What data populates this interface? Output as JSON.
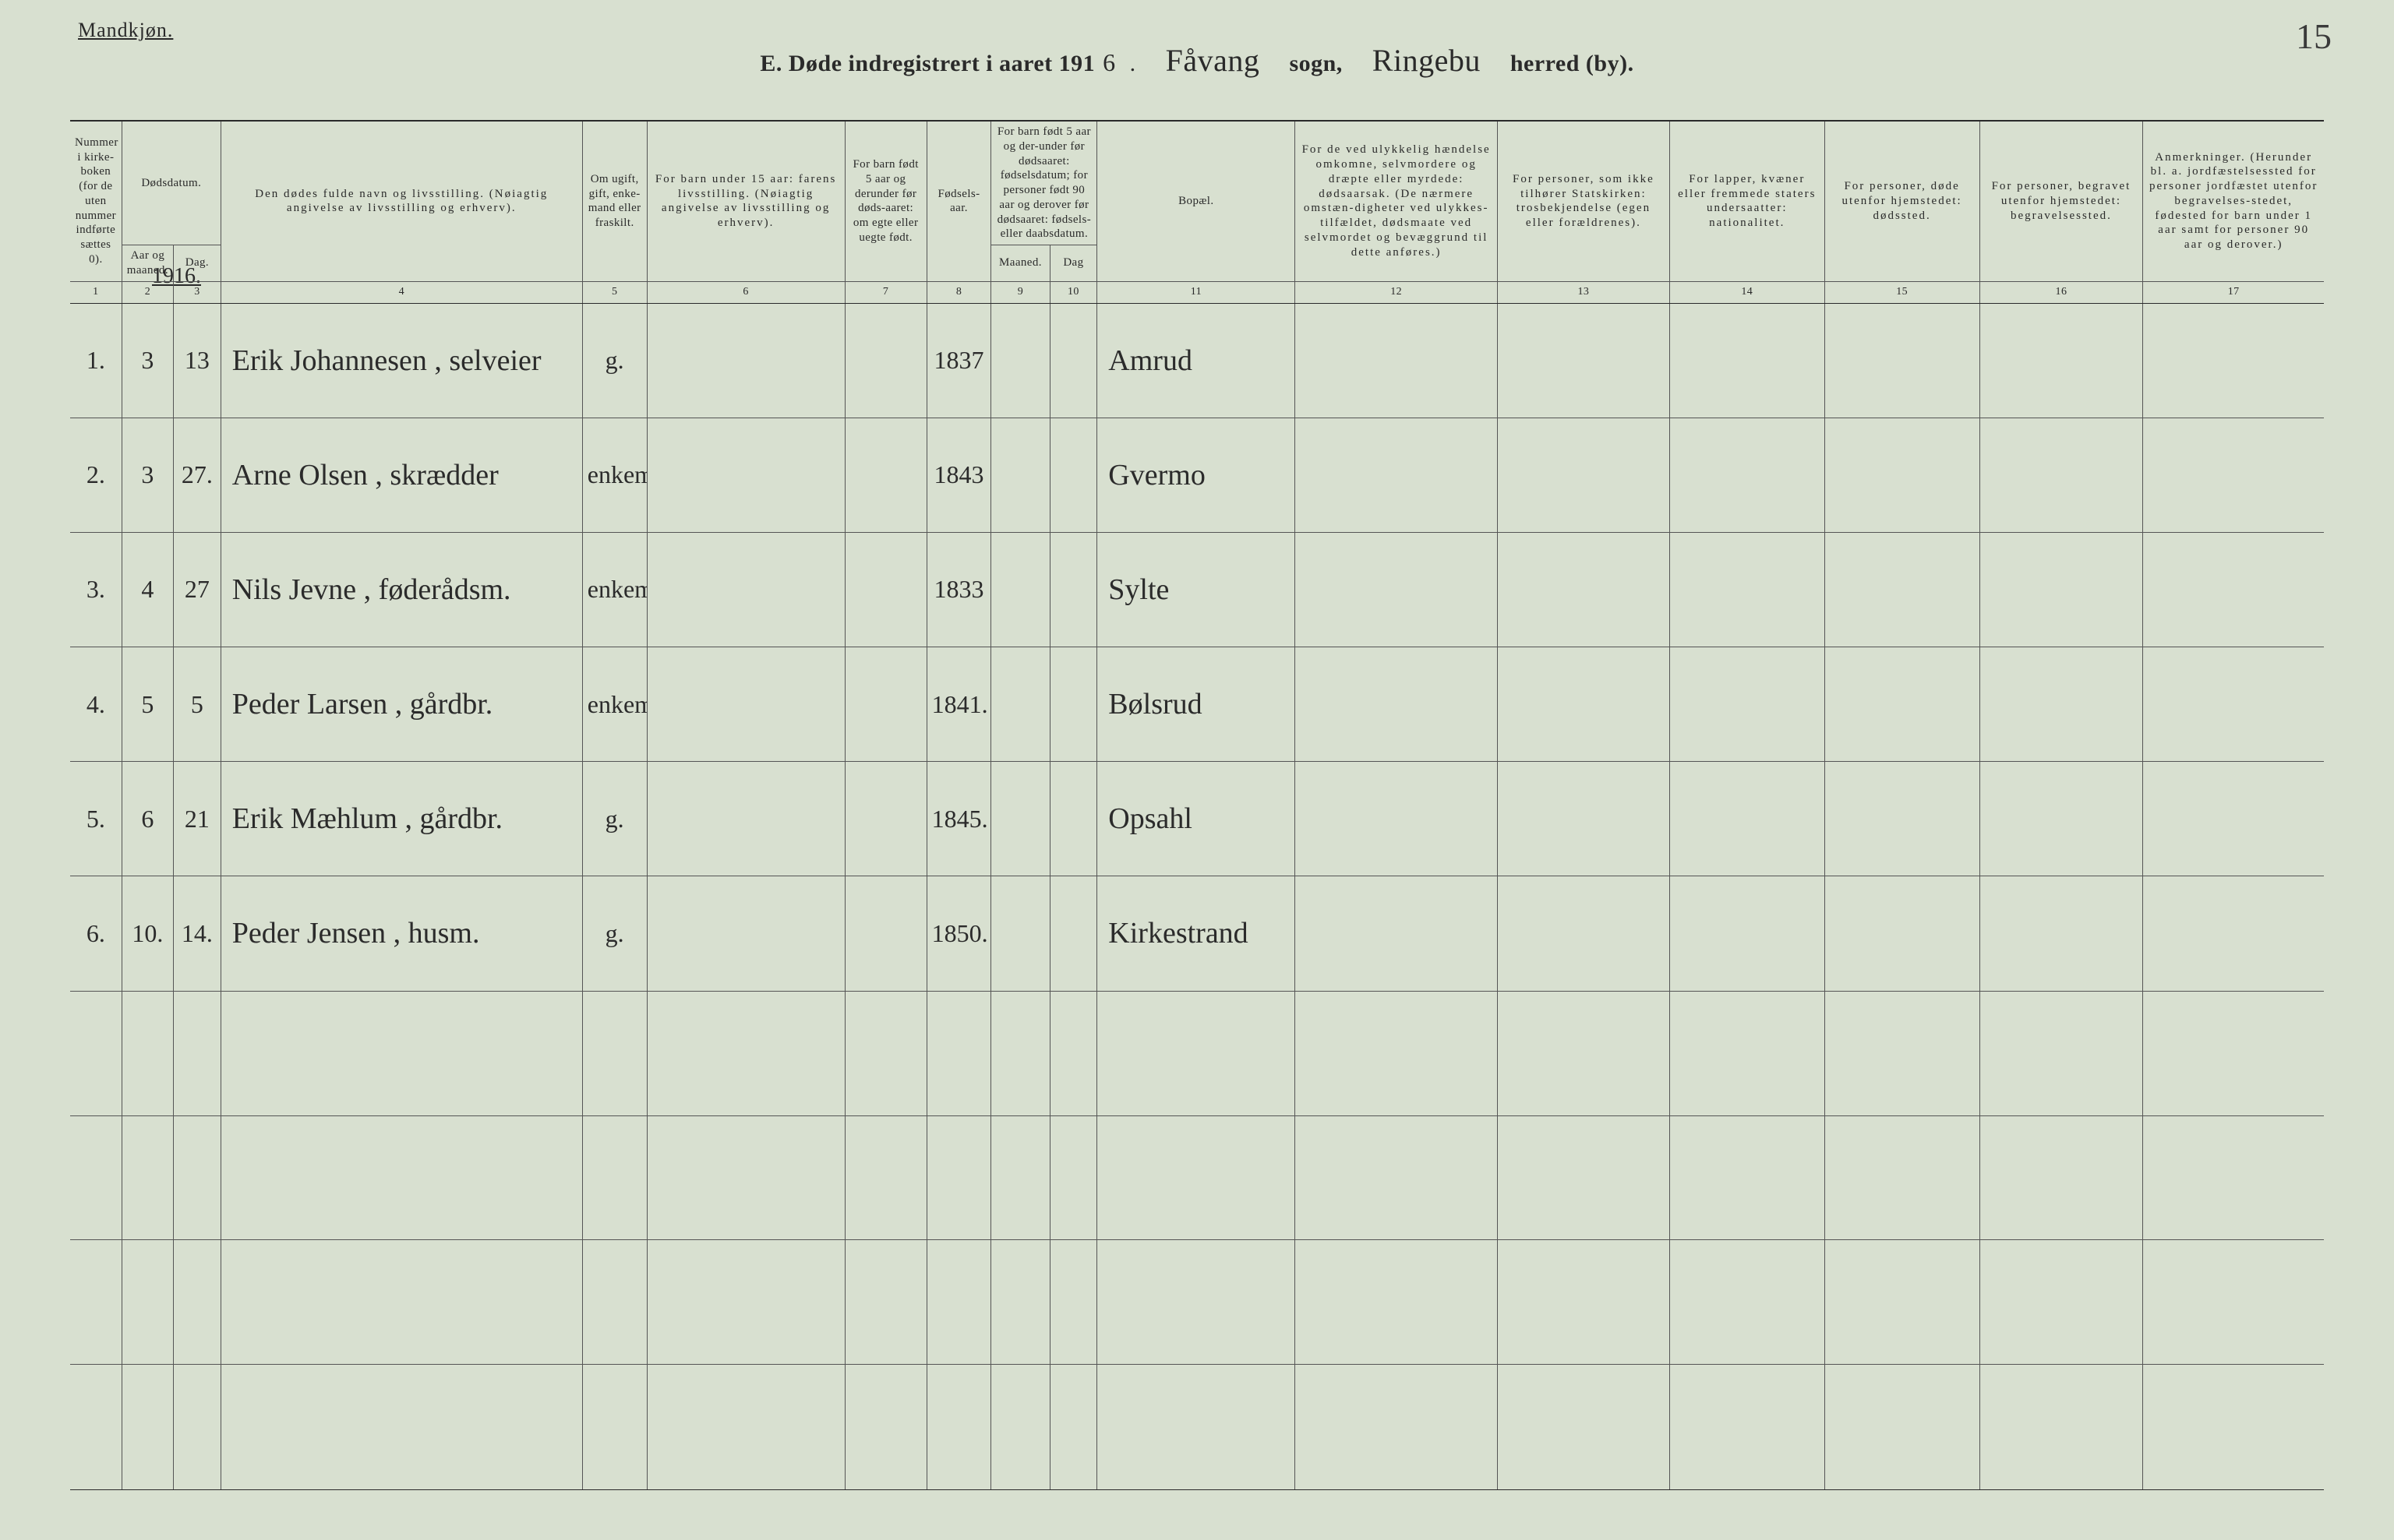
{
  "page_number_handwritten": "15",
  "header": {
    "gender": "Mandkjøn.",
    "section_letter": "E.",
    "title_main": "Døde indregistrert i aaret 191",
    "year_digit_hand": "6",
    "sogn_hand": "Fåvang",
    "sogn_label": "sogn,",
    "herred_hand": "Ringebu",
    "herred_label": "herred (by)."
  },
  "year_label": "1916.",
  "columns": {
    "c1": "Nummer i kirke-boken (for de uten nummer indførte sættes 0).",
    "c2_group": "Dødsdatum.",
    "c2": "Aar og maaned.",
    "c3": "Dag.",
    "c4": "Den dødes fulde navn og livsstilling. (Nøiagtig angivelse av livsstilling og erhverv).",
    "c5": "Om ugift, gift, enke-mand eller fraskilt.",
    "c6": "For barn under 15 aar: farens livsstilling. (Nøiagtig angivelse av livsstilling og erhverv).",
    "c7": "For barn født 5 aar og derunder før døds-aaret: om egte eller uegte født.",
    "c8": "Fødsels-aar.",
    "c9_group": "For barn født 5 aar og der-under før dødsaaret: fødselsdatum; for personer født 90 aar og derover før dødsaaret: fødsels- eller daabsdatum.",
    "c9": "Maaned.",
    "c10": "Dag",
    "c11": "Bopæl.",
    "c12": "For de ved ulykkelig hændelse omkomne, selvmordere og dræpte eller myrdede: dødsaarsak. (De nærmere omstæn-digheter ved ulykkes-tilfældet, dødsmaate ved selvmordet og bevæggrund til dette anføres.)",
    "c13": "For personer, som ikke tilhører Statskirken: trosbekjendelse (egen eller forældrenes).",
    "c14": "For lapper, kvæner eller fremmede staters undersaatter: nationalitet.",
    "c15": "For personer, døde utenfor hjemstedet: dødssted.",
    "c16": "For personer, begravet utenfor hjemstedet: begravelsessted.",
    "c17": "Anmerkninger. (Herunder bl. a. jordfæstelsessted for personer jordfæstet utenfor begravelses-stedet, fødested for barn under 1 aar samt for personer 90 aar og derover.)"
  },
  "col_numbers": [
    "1",
    "2",
    "3",
    "4",
    "5",
    "6",
    "7",
    "8",
    "9",
    "10",
    "11",
    "12",
    "13",
    "14",
    "15",
    "16",
    "17"
  ],
  "rows": [
    {
      "num": "1.",
      "maaned": "3",
      "dag": "13",
      "navn": "Erik Johannesen , selveier",
      "stand": "g.",
      "faar": "1837",
      "bopel": "Amrud"
    },
    {
      "num": "2.",
      "maaned": "3",
      "dag": "27.",
      "navn": "Arne Olsen ,  skrædder",
      "stand": "enkem.",
      "faar": "1843",
      "bopel": "Gvermo"
    },
    {
      "num": "3.",
      "maaned": "4",
      "dag": "27",
      "navn": "Nils Jevne , føderådsm.",
      "stand": "enkem.",
      "faar": "1833",
      "bopel": "Sylte"
    },
    {
      "num": "4.",
      "maaned": "5",
      "dag": "5",
      "navn": "Peder Larsen , gårdbr.",
      "stand": "enkem.",
      "faar": "1841.",
      "bopel": "Bølsrud"
    },
    {
      "num": "5.",
      "maaned": "6",
      "dag": "21",
      "navn": "Erik Mæhlum , gårdbr.",
      "stand": "g.",
      "faar": "1845.",
      "bopel": "Opsahl"
    },
    {
      "num": "6.",
      "maaned": "10.",
      "dag": "14.",
      "navn": "Peder Jensen , husm.",
      "stand": "g.",
      "faar": "1850.",
      "bopel": "Kirkestrand"
    }
  ],
  "empty_rows": 4,
  "colors": {
    "paper": "#d8e0d0",
    "ink": "#2a2a2a",
    "rule": "#555555"
  }
}
